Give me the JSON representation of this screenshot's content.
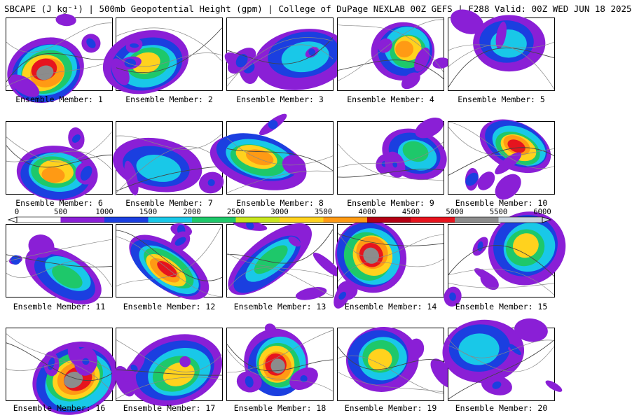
{
  "header": {
    "title": "SBCAPE (J kg⁻¹) | 500mb Geopotential Height (gpm) | College of DuPage NEXLAB 00Z GEFS | F288 Valid: 00Z WED JUN 18 2025"
  },
  "panels": [
    {
      "caption": "Ensemble Member: 1"
    },
    {
      "caption": "Ensemble Member: 2"
    },
    {
      "caption": "Ensemble Member: 3"
    },
    {
      "caption": "Ensemble Member: 4"
    },
    {
      "caption": "Ensemble Member: 5"
    },
    {
      "caption": "Ensemble Member: 6"
    },
    {
      "caption": "Ensemble Member: 7"
    },
    {
      "caption": "Ensemble Member: 8"
    },
    {
      "caption": "Ensemble Member: 9"
    },
    {
      "caption": "Ensemble Member: 10"
    },
    {
      "caption": "Ensemble Member: 11"
    },
    {
      "caption": "Ensemble Member: 12"
    },
    {
      "caption": "Ensemble Member: 13"
    },
    {
      "caption": "Ensemble Member: 14"
    },
    {
      "caption": "Ensemble Member: 15"
    },
    {
      "caption": "Ensemble Member: 16"
    },
    {
      "caption": "Ensemble Member: 17"
    },
    {
      "caption": "Ensemble Member: 18"
    },
    {
      "caption": "Ensemble Member: 19"
    },
    {
      "caption": "Ensemble Member: 20"
    }
  ],
  "colorbar": {
    "tick_labels": [
      "0",
      "500",
      "1000",
      "1500",
      "2000",
      "2500",
      "3000",
      "3500",
      "4000",
      "4500",
      "5000",
      "5500",
      "6000"
    ],
    "min": 0,
    "max": 6000,
    "colors": {
      "fill_0_500": "#ffffff",
      "fill_500_1000": "#8a1fd6",
      "fill_1000_1500": "#1b3fe0",
      "fill_1500_2000": "#19c8e8",
      "fill_2000_2500": "#1ec86a",
      "fill_2500_3000": "#c8e61e",
      "fill_3000_3500": "#ffd21e",
      "fill_3500_4000": "#ff9a14",
      "fill_4000_4500": "#b40014",
      "fill_4500_5000": "#e6141e",
      "fill_5000_5500": "#8c8c8c",
      "fill_5500_6000": "#c8d2dc"
    }
  }
}
